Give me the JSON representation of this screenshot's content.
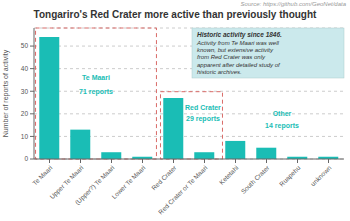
{
  "chart_data": {
    "type": "bar",
    "title": "Tongariro's Red Crater more active than previously thought",
    "ylabel": "Number of reports of activity",
    "categories": [
      "Te Maari",
      "Upper Te Maari",
      "(Upper?) Te Maari",
      "Lower Te Maari",
      "Red Crater",
      "Red Crater or Te Maari",
      "Ketetahi",
      "South Crater",
      "Ruapehu",
      "unknown"
    ],
    "values": [
      54,
      13,
      3,
      1,
      27,
      3,
      8,
      5,
      1,
      1
    ],
    "color": "#1ABDB5",
    "ylim": [
      0,
      58
    ],
    "yticks": [
      0,
      10,
      20,
      30,
      40,
      50
    ],
    "grid": true,
    "annotations": [
      "Te Maari",
      "71 reports",
      "Red Crater",
      "29 reports",
      "Other",
      "14 reports",
      "Historic activity since 1846.",
      "Activity from Te Maari was well\nknown, but extensive activity\nfrom Red Crater was only\napparent after detailed study of\nhistoric archives.",
      "Source: https://github.com/GeoNet/data"
    ]
  }
}
